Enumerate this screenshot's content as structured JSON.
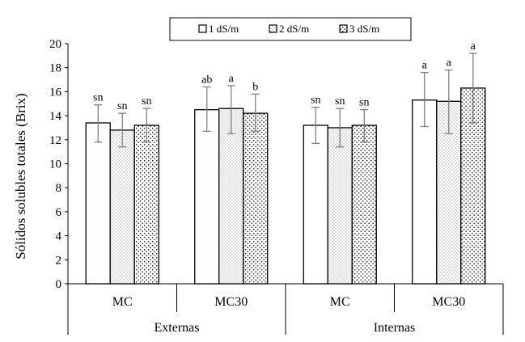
{
  "chart_data": {
    "type": "bar",
    "ylabel": "Sólidos solubles totales (Brix)",
    "ylim": [
      0,
      20
    ],
    "yticks": [
      0,
      2,
      4,
      6,
      8,
      10,
      12,
      14,
      16,
      18,
      20
    ],
    "grid": false,
    "legend_position": "top-center",
    "categories": [
      "MC",
      "MC30",
      "MC",
      "MC30"
    ],
    "groups": [
      {
        "label": "Externas",
        "categories": [
          "MC",
          "MC30"
        ]
      },
      {
        "label": "Internas",
        "categories": [
          "MC",
          "MC30"
        ]
      }
    ],
    "series": [
      {
        "name": "1 dS/m",
        "pattern": "white",
        "values": [
          13.4,
          14.5,
          13.2,
          15.3
        ],
        "error_low": [
          11.8,
          12.7,
          11.7,
          13.1
        ],
        "error_high": [
          14.9,
          16.4,
          14.7,
          17.6
        ],
        "labels": [
          "sn",
          "ab",
          "sn",
          "a"
        ]
      },
      {
        "name": "2 dS/m",
        "pattern": "fine-dots",
        "values": [
          12.8,
          14.6,
          13.0,
          15.2
        ],
        "error_low": [
          11.4,
          12.5,
          11.4,
          12.5
        ],
        "error_high": [
          14.2,
          16.5,
          14.6,
          17.8
        ],
        "labels": [
          "sn",
          "a",
          "sn",
          "a"
        ]
      },
      {
        "name": "3 dS/m",
        "pattern": "coarse-dots",
        "values": [
          13.2,
          14.2,
          13.2,
          16.3
        ],
        "error_low": [
          11.8,
          12.7,
          11.8,
          13.4
        ],
        "error_high": [
          14.6,
          15.8,
          14.5,
          19.2
        ],
        "labels": [
          "sn",
          "b",
          "sn",
          "a"
        ]
      }
    ],
    "colors": {
      "bar_stroke": "#000000",
      "bar_fill": "#ffffff",
      "error_bar": "#808080",
      "axis": "#000000",
      "text": "#000000"
    }
  }
}
